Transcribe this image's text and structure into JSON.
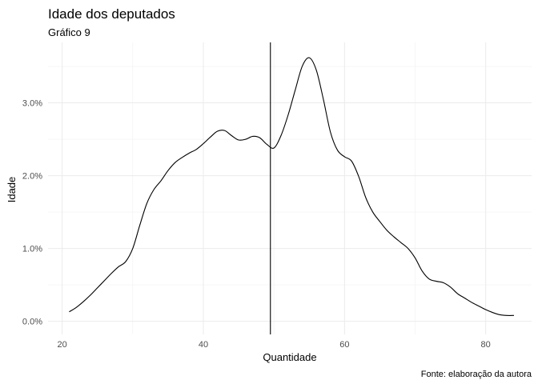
{
  "chart_data": {
    "type": "line",
    "title": "Idade dos deputados",
    "subtitle": "Gráfico 9",
    "xlabel": "Quantidade",
    "ylabel": "Idade",
    "caption": "Fonte: elaboração da autora",
    "xlim": [
      18,
      86.5
    ],
    "ylim": [
      -0.0018,
      0.0383
    ],
    "x_ticks": [
      20,
      40,
      60,
      80
    ],
    "x_tick_labels": [
      "20",
      "40",
      "60",
      "80"
    ],
    "y_ticks": [
      0,
      0.01,
      0.02,
      0.03
    ],
    "y_tick_labels": [
      "0.0%",
      "1.0%",
      "2.0%",
      "3.0%"
    ],
    "grid": true,
    "vline_x": 49.5,
    "series": [
      {
        "x": [
          21,
          22,
          23,
          24,
          25,
          26,
          27,
          28,
          29,
          30,
          31,
          32,
          33,
          34,
          35,
          36,
          37,
          38,
          39,
          40,
          41,
          42,
          43,
          44,
          45,
          46,
          47,
          48,
          49,
          50,
          51,
          52,
          53,
          54,
          55,
          56,
          57,
          58,
          59,
          60,
          61,
          62,
          63,
          64,
          65,
          66,
          67,
          68,
          69,
          70,
          71,
          72,
          73,
          74,
          75,
          76,
          77,
          78,
          79,
          80,
          81,
          82,
          83,
          84
        ],
        "y": [
          0.0013,
          0.0019,
          0.0027,
          0.0036,
          0.0046,
          0.0056,
          0.0066,
          0.0075,
          0.0082,
          0.01,
          0.0132,
          0.0162,
          0.0181,
          0.0193,
          0.0207,
          0.0218,
          0.0225,
          0.0231,
          0.0236,
          0.0244,
          0.0253,
          0.0261,
          0.0262,
          0.0255,
          0.0249,
          0.025,
          0.0254,
          0.0252,
          0.0243,
          0.0238,
          0.0255,
          0.0283,
          0.0317,
          0.035,
          0.0362,
          0.0345,
          0.0305,
          0.026,
          0.0235,
          0.0226,
          0.022,
          0.0199,
          0.017,
          0.015,
          0.0137,
          0.0125,
          0.0116,
          0.0108,
          0.01,
          0.0087,
          0.0069,
          0.0058,
          0.0055,
          0.0053,
          0.0047,
          0.0038,
          0.0032,
          0.0026,
          0.0021,
          0.0016,
          0.0012,
          0.0009,
          0.0008,
          0.0008
        ]
      }
    ]
  }
}
